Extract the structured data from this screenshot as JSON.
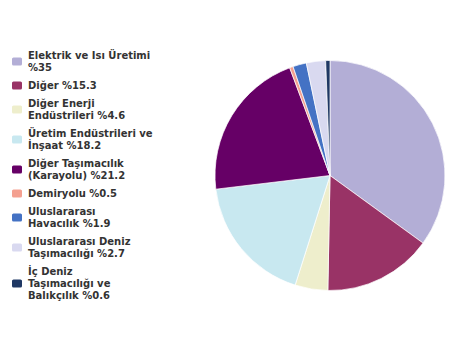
{
  "chart_data": {
    "type": "pie",
    "categories": [
      "Elektrik ve Isı Üretimi %35",
      "Diğer %15.3",
      "Diğer Enerji Endüstrileri %4.6",
      "Üretim Endüstrileri ve İnşaat %18.2",
      "Diğer Taşımacılık (Karayolu) %21.2",
      "Demiryolu %0.5",
      "Uluslararası Havacılık %1.9",
      "Uluslararası Deniz Taşımacılığı %2.7",
      "İç Deniz Taşımacılığı ve Balıkçılık %0.6"
    ],
    "values": [
      35.0,
      15.3,
      4.6,
      18.2,
      21.2,
      0.5,
      1.9,
      2.7,
      0.6
    ],
    "colors": [
      "#b3aed6",
      "#993366",
      "#eeeecc",
      "#c8e8f0",
      "#660066",
      "#f4a090",
      "#4472c4",
      "#d9d9f0",
      "#1f3864"
    ],
    "legend": "left"
  }
}
